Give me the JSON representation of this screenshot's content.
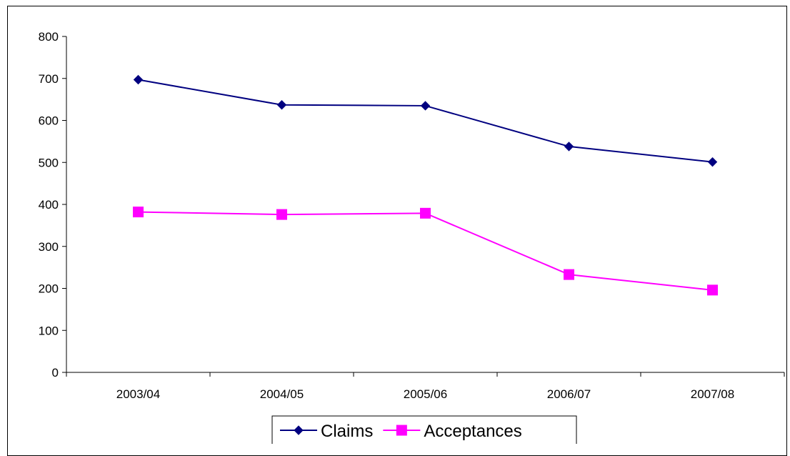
{
  "chart_data": {
    "type": "line",
    "title": "",
    "xlabel": "",
    "ylabel": "",
    "categories": [
      "2003/04",
      "2004/05",
      "2005/06",
      "2006/07",
      "2007/08"
    ],
    "series": [
      {
        "name": "Claims",
        "values": [
          697,
          637,
          635,
          538,
          501
        ],
        "color": "#000080",
        "marker": "diamond"
      },
      {
        "name": "Acceptances",
        "values": [
          382,
          376,
          379,
          233,
          196
        ],
        "color": "#FF00FF",
        "marker": "square"
      }
    ],
    "ylim": [
      0,
      800
    ],
    "yticks": [
      0,
      100,
      200,
      300,
      400,
      500,
      600,
      700,
      800
    ],
    "grid": false,
    "legend": "bottom"
  }
}
